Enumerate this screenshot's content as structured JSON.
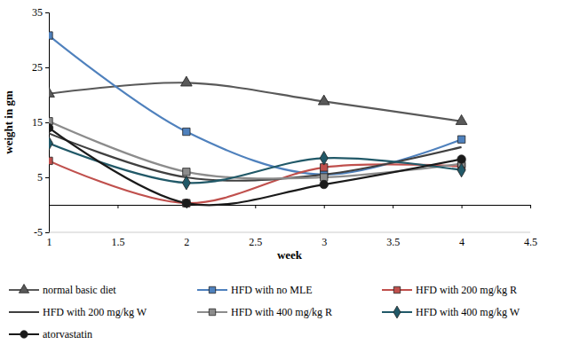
{
  "chart_data": {
    "type": "line",
    "x_label": "week",
    "y_label": "weight in gm",
    "x": [
      1,
      2,
      3,
      4
    ],
    "xlim": [
      1,
      4.5
    ],
    "xticks": [
      1,
      1.5,
      2,
      2.5,
      3,
      3.5,
      4,
      4.5
    ],
    "ylim": [
      -5,
      35
    ],
    "yticks": [
      -5,
      5,
      15,
      25,
      35
    ],
    "grid": false,
    "legend": "bottom",
    "line_style": "smooth",
    "series": [
      {
        "name": "normal basic diet",
        "color": "#595959",
        "marker": "triangle",
        "values": [
          20.2,
          22.2,
          18.8,
          15.2
        ]
      },
      {
        "name": "HFD with no MLE",
        "color": "#4f81bd",
        "marker": "square",
        "values": [
          30.8,
          13.3,
          5.5,
          11.9
        ]
      },
      {
        "name": "HFD with 200 mg/kg R",
        "color": "#c0504d",
        "marker": "square",
        "values": [
          8,
          0.3,
          6.8,
          7
        ]
      },
      {
        "name": "HFD with 200 mg/kg W",
        "color": "#404040",
        "marker": "none",
        "values": [
          13,
          5,
          5.5,
          10.5
        ]
      },
      {
        "name": "HFD with 400 mg/kg R",
        "color": "#8c8c8c",
        "marker": "square",
        "values": [
          15.2,
          6,
          5,
          7.5
        ]
      },
      {
        "name": "HFD with 400 mg/kg W",
        "color": "#215968",
        "marker": "diamond",
        "values": [
          11.2,
          4,
          8.5,
          6.3
        ]
      },
      {
        "name": "atorvastatin",
        "color": "#1a1a1a",
        "marker": "circle",
        "values": [
          14,
          0.3,
          3.7,
          8.3
        ]
      }
    ]
  }
}
